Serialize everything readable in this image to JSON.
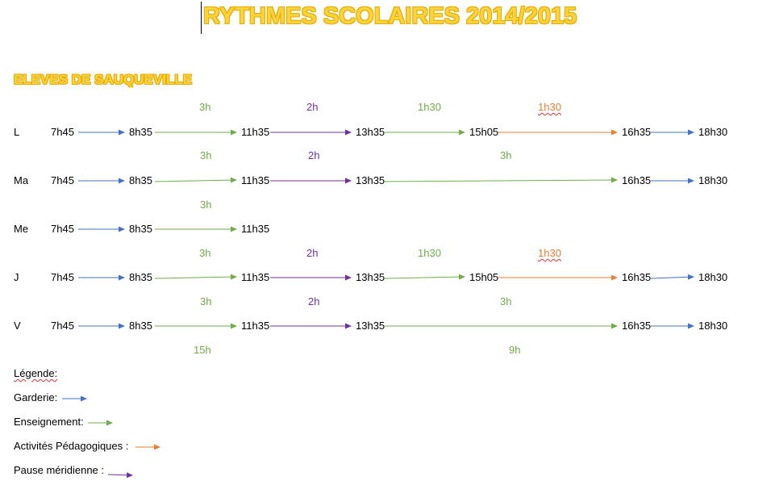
{
  "colors": {
    "title": "#fbd43a",
    "garderie": "#4472c4",
    "enseignement": "#70ad47",
    "activites": "#ed7d31",
    "pause": "#7030a0"
  },
  "title": "RYTHMES SCOLAIRES 2014/2015",
  "subtitle": "ELEVES DE SAUQUEVILLE",
  "rows": [
    {
      "day": "L",
      "times": [
        "7h45",
        "8h35",
        "11h35",
        "13h35",
        "15h05",
        "16h35",
        "18h30"
      ],
      "durations": [
        {
          "text": "3h",
          "kind": "enseignement"
        },
        {
          "text": "2h",
          "kind": "pause"
        },
        {
          "text": "1h30",
          "kind": "enseignement"
        },
        {
          "text": "1h30",
          "kind": "activites"
        }
      ],
      "segments": [
        "garderie",
        "enseignement",
        "pause",
        "enseignement",
        "activites",
        "garderie"
      ]
    },
    {
      "day": "Ma",
      "times": [
        "7h45",
        "8h35",
        "11h35",
        "13h35",
        "16h35",
        "18h30"
      ],
      "durations": [
        {
          "text": "3h",
          "kind": "enseignement"
        },
        {
          "text": "2h",
          "kind": "pause"
        },
        {
          "text": "3h",
          "kind": "enseignement"
        }
      ],
      "segments": [
        "garderie",
        "enseignement",
        "pause",
        "enseignement",
        "garderie"
      ]
    },
    {
      "day": "Me",
      "times": [
        "7h45",
        "8h35",
        "11h35"
      ],
      "durations": [
        {
          "text": "3h",
          "kind": "enseignement"
        }
      ],
      "segments": [
        "garderie",
        "enseignement"
      ]
    },
    {
      "day": "J",
      "times": [
        "7h45",
        "8h35",
        "11h35",
        "13h35",
        "15h05",
        "16h35",
        "18h30"
      ],
      "durations": [
        {
          "text": "3h",
          "kind": "enseignement"
        },
        {
          "text": "2h",
          "kind": "pause"
        },
        {
          "text": "1h30",
          "kind": "enseignement"
        },
        {
          "text": "1h30",
          "kind": "activites"
        }
      ],
      "segments": [
        "garderie",
        "enseignement",
        "pause",
        "enseignement",
        "activites",
        "garderie"
      ]
    },
    {
      "day": "V",
      "times": [
        "7h45",
        "8h35",
        "11h35",
        "13h35",
        "16h35",
        "18h30"
      ],
      "durations": [
        {
          "text": "3h",
          "kind": "enseignement"
        },
        {
          "text": "2h",
          "kind": "pause"
        },
        {
          "text": "3h",
          "kind": "enseignement"
        }
      ],
      "segments": [
        "garderie",
        "enseignement",
        "pause",
        "enseignement",
        "garderie"
      ]
    }
  ],
  "totals": [
    {
      "text": "15h",
      "kind": "enseignement"
    },
    {
      "text": "9h",
      "kind": "enseignement"
    }
  ],
  "legend": {
    "title": "Légende:",
    "items": [
      {
        "label": "Garderie:",
        "kind": "garderie"
      },
      {
        "label": "Enseignement:",
        "kind": "enseignement"
      },
      {
        "label": "Activités Pédagogiques :",
        "kind": "activites"
      },
      {
        "label": "Pause méridienne :",
        "kind": "pause"
      }
    ]
  }
}
